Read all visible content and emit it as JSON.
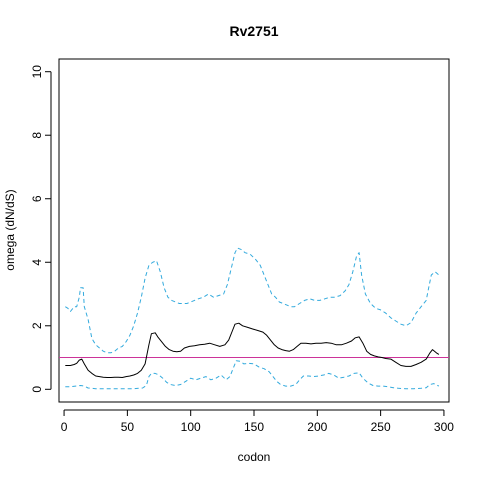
{
  "chart_data": {
    "type": "line",
    "title": "Rv2751",
    "xlabel": "codon",
    "ylabel": "omega (dN/dS)",
    "xlim": [
      -4,
      304
    ],
    "ylim": [
      -0.4,
      10.4
    ],
    "x_ticks": [
      0,
      50,
      100,
      150,
      200,
      250,
      300
    ],
    "y_ticks": [
      0,
      2,
      4,
      6,
      8,
      10
    ],
    "grid": false,
    "legend": "none",
    "reference_line": {
      "y": 1,
      "color": "#cc3399"
    },
    "series": [
      {
        "style": "dashed",
        "color": "#33aadd",
        "points": [
          [
            1,
            2.6
          ],
          [
            3,
            2.55
          ],
          [
            5,
            2.45
          ],
          [
            8,
            2.6
          ],
          [
            10,
            2.6
          ],
          [
            12,
            2.9
          ],
          [
            13,
            3.2
          ],
          [
            15,
            3.2
          ],
          [
            16,
            2.6
          ],
          [
            19,
            2.2
          ],
          [
            22,
            1.6
          ],
          [
            25,
            1.4
          ],
          [
            28,
            1.3
          ],
          [
            31,
            1.2
          ],
          [
            34,
            1.15
          ],
          [
            37,
            1.15
          ],
          [
            40,
            1.2
          ],
          [
            43,
            1.3
          ],
          [
            46,
            1.35
          ],
          [
            49,
            1.5
          ],
          [
            52,
            1.7
          ],
          [
            55,
            2.0
          ],
          [
            58,
            2.4
          ],
          [
            61,
            2.9
          ],
          [
            64,
            3.5
          ],
          [
            67,
            3.9
          ],
          [
            70,
            4.0
          ],
          [
            73,
            4.05
          ],
          [
            76,
            3.7
          ],
          [
            79,
            3.2
          ],
          [
            82,
            2.9
          ],
          [
            85,
            2.8
          ],
          [
            88,
            2.75
          ],
          [
            91,
            2.7
          ],
          [
            94,
            2.7
          ],
          [
            97,
            2.7
          ],
          [
            100,
            2.75
          ],
          [
            103,
            2.8
          ],
          [
            106,
            2.85
          ],
          [
            110,
            2.9
          ],
          [
            114,
            3.0
          ],
          [
            118,
            2.9
          ],
          [
            122,
            2.95
          ],
          [
            126,
            3.0
          ],
          [
            129,
            3.3
          ],
          [
            132,
            3.8
          ],
          [
            135,
            4.3
          ],
          [
            137,
            4.45
          ],
          [
            140,
            4.4
          ],
          [
            143,
            4.3
          ],
          [
            147,
            4.25
          ],
          [
            151,
            4.1
          ],
          [
            155,
            3.9
          ],
          [
            158,
            3.6
          ],
          [
            161,
            3.3
          ],
          [
            164,
            3.0
          ],
          [
            167,
            2.9
          ],
          [
            170,
            2.75
          ],
          [
            173,
            2.7
          ],
          [
            176,
            2.65
          ],
          [
            179,
            2.6
          ],
          [
            182,
            2.6
          ],
          [
            186,
            2.7
          ],
          [
            190,
            2.8
          ],
          [
            194,
            2.85
          ],
          [
            198,
            2.8
          ],
          [
            202,
            2.8
          ],
          [
            206,
            2.85
          ],
          [
            210,
            2.9
          ],
          [
            214,
            2.9
          ],
          [
            218,
            2.95
          ],
          [
            222,
            3.1
          ],
          [
            225,
            3.3
          ],
          [
            228,
            3.7
          ],
          [
            231,
            4.2
          ],
          [
            233,
            4.3
          ],
          [
            235,
            3.6
          ],
          [
            238,
            3.0
          ],
          [
            242,
            2.7
          ],
          [
            246,
            2.55
          ],
          [
            250,
            2.5
          ],
          [
            254,
            2.4
          ],
          [
            258,
            2.25
          ],
          [
            262,
            2.15
          ],
          [
            266,
            2.05
          ],
          [
            270,
            2.0
          ],
          [
            274,
            2.1
          ],
          [
            278,
            2.4
          ],
          [
            282,
            2.6
          ],
          [
            286,
            2.8
          ],
          [
            288,
            3.2
          ],
          [
            290,
            3.6
          ],
          [
            293,
            3.7
          ],
          [
            296,
            3.6
          ]
        ]
      },
      {
        "style": "solid",
        "color": "#000000",
        "points": [
          [
            1,
            0.75
          ],
          [
            5,
            0.75
          ],
          [
            8,
            0.78
          ],
          [
            10,
            0.82
          ],
          [
            12,
            0.92
          ],
          [
            14,
            0.95
          ],
          [
            16,
            0.8
          ],
          [
            19,
            0.6
          ],
          [
            22,
            0.5
          ],
          [
            25,
            0.42
          ],
          [
            28,
            0.4
          ],
          [
            31,
            0.38
          ],
          [
            34,
            0.37
          ],
          [
            37,
            0.37
          ],
          [
            40,
            0.38
          ],
          [
            43,
            0.38
          ],
          [
            46,
            0.37
          ],
          [
            49,
            0.4
          ],
          [
            52,
            0.42
          ],
          [
            55,
            0.45
          ],
          [
            58,
            0.5
          ],
          [
            61,
            0.6
          ],
          [
            64,
            0.8
          ],
          [
            67,
            1.4
          ],
          [
            69,
            1.75
          ],
          [
            72,
            1.78
          ],
          [
            74,
            1.65
          ],
          [
            77,
            1.5
          ],
          [
            80,
            1.35
          ],
          [
            83,
            1.25
          ],
          [
            86,
            1.2
          ],
          [
            89,
            1.18
          ],
          [
            92,
            1.2
          ],
          [
            95,
            1.3
          ],
          [
            99,
            1.35
          ],
          [
            103,
            1.37
          ],
          [
            107,
            1.4
          ],
          [
            111,
            1.42
          ],
          [
            115,
            1.45
          ],
          [
            119,
            1.4
          ],
          [
            123,
            1.35
          ],
          [
            127,
            1.4
          ],
          [
            130,
            1.55
          ],
          [
            133,
            1.85
          ],
          [
            135,
            2.05
          ],
          [
            138,
            2.08
          ],
          [
            141,
            2.0
          ],
          [
            145,
            1.95
          ],
          [
            149,
            1.9
          ],
          [
            153,
            1.85
          ],
          [
            157,
            1.8
          ],
          [
            160,
            1.7
          ],
          [
            163,
            1.55
          ],
          [
            166,
            1.4
          ],
          [
            169,
            1.3
          ],
          [
            172,
            1.25
          ],
          [
            175,
            1.22
          ],
          [
            178,
            1.2
          ],
          [
            181,
            1.25
          ],
          [
            184,
            1.35
          ],
          [
            187,
            1.45
          ],
          [
            191,
            1.45
          ],
          [
            195,
            1.43
          ],
          [
            199,
            1.45
          ],
          [
            203,
            1.45
          ],
          [
            207,
            1.47
          ],
          [
            211,
            1.45
          ],
          [
            215,
            1.4
          ],
          [
            219,
            1.4
          ],
          [
            223,
            1.45
          ],
          [
            227,
            1.52
          ],
          [
            230,
            1.62
          ],
          [
            233,
            1.65
          ],
          [
            236,
            1.45
          ],
          [
            239,
            1.2
          ],
          [
            242,
            1.1
          ],
          [
            245,
            1.05
          ],
          [
            248,
            1.02
          ],
          [
            251,
            1.0
          ],
          [
            254,
            0.97
          ],
          [
            258,
            0.95
          ],
          [
            262,
            0.85
          ],
          [
            266,
            0.75
          ],
          [
            270,
            0.72
          ],
          [
            274,
            0.72
          ],
          [
            278,
            0.78
          ],
          [
            282,
            0.85
          ],
          [
            286,
            0.95
          ],
          [
            289,
            1.15
          ],
          [
            291,
            1.25
          ],
          [
            294,
            1.15
          ],
          [
            296,
            1.1
          ]
        ]
      },
      {
        "style": "dashed",
        "color": "#33aadd",
        "points": [
          [
            1,
            0.08
          ],
          [
            5,
            0.08
          ],
          [
            9,
            0.1
          ],
          [
            13,
            0.12
          ],
          [
            16,
            0.1
          ],
          [
            19,
            0.04
          ],
          [
            25,
            0.02
          ],
          [
            35,
            0.02
          ],
          [
            45,
            0.02
          ],
          [
            55,
            0.02
          ],
          [
            62,
            0.04
          ],
          [
            65,
            0.12
          ],
          [
            67,
            0.4
          ],
          [
            69,
            0.5
          ],
          [
            72,
            0.5
          ],
          [
            75,
            0.45
          ],
          [
            78,
            0.35
          ],
          [
            81,
            0.22
          ],
          [
            84,
            0.15
          ],
          [
            88,
            0.12
          ],
          [
            92,
            0.15
          ],
          [
            96,
            0.25
          ],
          [
            100,
            0.35
          ],
          [
            104,
            0.3
          ],
          [
            108,
            0.35
          ],
          [
            112,
            0.4
          ],
          [
            116,
            0.3
          ],
          [
            120,
            0.35
          ],
          [
            124,
            0.45
          ],
          [
            128,
            0.3
          ],
          [
            131,
            0.4
          ],
          [
            134,
            0.7
          ],
          [
            136,
            0.9
          ],
          [
            139,
            0.88
          ],
          [
            142,
            0.8
          ],
          [
            146,
            0.82
          ],
          [
            150,
            0.8
          ],
          [
            154,
            0.7
          ],
          [
            158,
            0.65
          ],
          [
            162,
            0.55
          ],
          [
            165,
            0.4
          ],
          [
            168,
            0.25
          ],
          [
            171,
            0.15
          ],
          [
            175,
            0.1
          ],
          [
            179,
            0.1
          ],
          [
            183,
            0.15
          ],
          [
            186,
            0.3
          ],
          [
            189,
            0.42
          ],
          [
            193,
            0.42
          ],
          [
            197,
            0.4
          ],
          [
            201,
            0.42
          ],
          [
            205,
            0.45
          ],
          [
            209,
            0.5
          ],
          [
            213,
            0.45
          ],
          [
            217,
            0.35
          ],
          [
            221,
            0.38
          ],
          [
            225,
            0.42
          ],
          [
            229,
            0.5
          ],
          [
            233,
            0.52
          ],
          [
            236,
            0.35
          ],
          [
            240,
            0.2
          ],
          [
            244,
            0.12
          ],
          [
            248,
            0.1
          ],
          [
            252,
            0.1
          ],
          [
            256,
            0.08
          ],
          [
            260,
            0.05
          ],
          [
            264,
            0.03
          ],
          [
            270,
            0.02
          ],
          [
            276,
            0.02
          ],
          [
            282,
            0.03
          ],
          [
            286,
            0.05
          ],
          [
            289,
            0.15
          ],
          [
            292,
            0.18
          ],
          [
            295,
            0.12
          ],
          [
            296,
            0.1
          ]
        ]
      }
    ]
  }
}
